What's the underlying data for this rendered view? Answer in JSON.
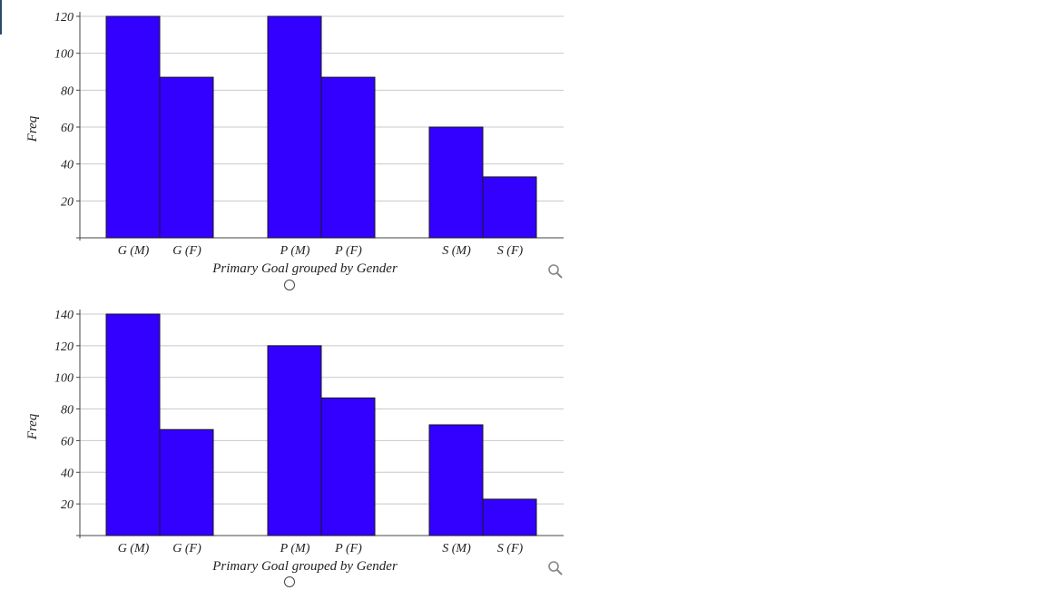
{
  "colors": {
    "bar_fill": "#3300ff",
    "bar_stroke": "#1a1a1a",
    "grid": "#c8c8c8",
    "axis": "#444444"
  },
  "icons": {
    "zoom": "magnifier-icon",
    "choice": "radio-circle"
  },
  "chart_data": [
    {
      "type": "bar",
      "xlabel": "Primary Goal grouped by Gender",
      "ylabel": "Freq",
      "ylim": [
        0,
        120
      ],
      "yticks": [
        20,
        40,
        60,
        80,
        100,
        120
      ],
      "grid": true,
      "categories": [
        "G (M)",
        "G (F)",
        "P (M)",
        "P (F)",
        "S (M)",
        "S (F)"
      ],
      "values": [
        120,
        87,
        120,
        87,
        60,
        33
      ]
    },
    {
      "type": "bar",
      "xlabel": "Primary Goal grouped by Gender",
      "ylabel": "Freq",
      "ylim": [
        0,
        140
      ],
      "yticks": [
        20,
        40,
        60,
        80,
        100,
        120,
        140
      ],
      "grid": true,
      "categories": [
        "G (M)",
        "G (F)",
        "P (M)",
        "P (F)",
        "S (M)",
        "S (F)"
      ],
      "values": [
        140,
        67,
        120,
        87,
        70,
        23
      ]
    }
  ]
}
